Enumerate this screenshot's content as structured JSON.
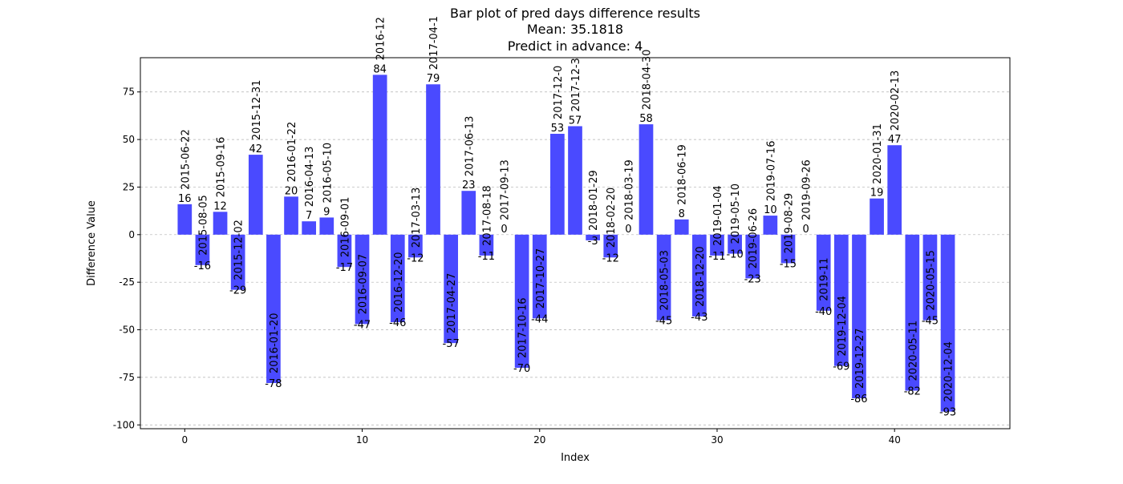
{
  "chart_data": {
    "type": "bar",
    "title_lines": [
      "Bar plot of pred days difference results",
      "Mean: 35.1818",
      "Predict in advance: 4"
    ],
    "xlabel": "Index",
    "ylabel": "Difference Value",
    "xlim": [
      -2.5,
      46.5
    ],
    "ylim": [
      -102,
      93
    ],
    "xticks": [
      0,
      10,
      20,
      30,
      40
    ],
    "yticks": [
      -100,
      -75,
      -50,
      -25,
      0,
      25,
      50,
      75
    ],
    "grid": "y-dashed",
    "bar_color": "#4a4aff",
    "x": [
      0,
      1,
      2,
      3,
      4,
      5,
      6,
      7,
      8,
      9,
      10,
      11,
      12,
      13,
      14,
      15,
      16,
      17,
      18,
      19,
      20,
      21,
      22,
      23,
      24,
      25,
      26,
      27,
      28,
      29,
      30,
      31,
      32,
      33,
      34,
      35,
      36,
      37,
      38,
      39,
      40,
      41,
      42,
      43
    ],
    "values": [
      16,
      -16,
      12,
      -29,
      42,
      -78,
      20,
      7,
      9,
      -17,
      -47,
      84,
      -46,
      -12,
      79,
      -57,
      23,
      -11,
      0,
      -70,
      -44,
      53,
      57,
      -3,
      -12,
      0,
      58,
      -45,
      8,
      -43,
      -11,
      -10,
      -23,
      10,
      -15,
      0,
      -40,
      -69,
      -86,
      19,
      47,
      -82,
      -45,
      -93
    ],
    "dates": [
      "2015-06-22",
      "2015-08-05",
      "2015-09-16",
      "2015-12-02",
      "2015-12-31",
      "2016-01-20",
      "2016-01-22",
      "2016-04-13",
      "2016-05-10",
      "2016-09-01",
      "2016-09-07",
      "2016-12",
      "2016-12-20",
      "2017-03-13",
      "2017-04-1",
      "2017-04-27",
      "2017-06-13",
      "2017-08-18",
      "2017-09-13",
      "2017-10-16",
      "2017-10-27",
      "2017-12-0",
      "2017-12-3",
      "2018-01-29",
      "2018-02-20",
      "2018-03-19",
      "2018-04-30",
      "2018-05-03",
      "2018-06-19",
      "2018-12-20",
      "2019-01-04",
      "2019-05-10",
      "2019-06-26",
      "2019-07-16",
      "2019-08-29",
      "2019-09-26",
      "2019-11",
      "2019-12-04",
      "2019-12-27",
      "2020-01-31",
      "2020-02-13",
      "2020-05-11",
      "2020-05-15",
      "2020-12-04"
    ]
  }
}
